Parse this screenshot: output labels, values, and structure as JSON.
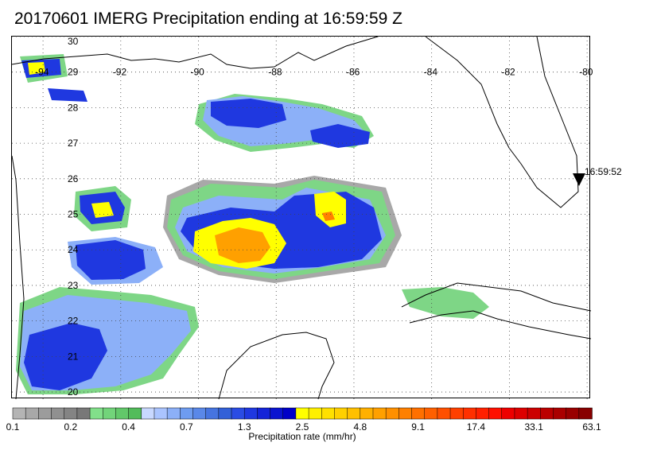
{
  "title": "20170601 IMERG Precipitation ending at 16:59:59 Z",
  "marker": {
    "time_label": "16:59:52"
  },
  "map": {
    "lon_labels": [
      "-94",
      "-92",
      "-90",
      "-88",
      "-86",
      "-84",
      "-82",
      "-80"
    ],
    "lat_labels": [
      "30",
      "29",
      "28",
      "27",
      "26",
      "25",
      "24",
      "23",
      "22",
      "21",
      "20"
    ],
    "lon_range": [
      -94.8,
      -79.9
    ],
    "lat_range": [
      19.8,
      30.0
    ],
    "grid": true
  },
  "colorbar": {
    "title": "Precipitation rate (mm/hr)",
    "tick_labels": [
      "0.1",
      "0.2",
      "0.4",
      "0.7",
      "1.3",
      "2.5",
      "4.8",
      "9.1",
      "17.4",
      "33.1",
      "63.1"
    ],
    "colors": [
      "#b4b4b4",
      "#a8a8a8",
      "#9c9c9c",
      "#909090",
      "#848484",
      "#787878",
      "#82e08a",
      "#72d47a",
      "#62c86a",
      "#52bc5a",
      "#c8d8ff",
      "#aac4ff",
      "#8cb0f8",
      "#6e9cf0",
      "#5a88e8",
      "#4674e0",
      "#3260d8",
      "#2a4ce4",
      "#1f38e0",
      "#1424d8",
      "#0a14d0",
      "#0000c8",
      "#ffff00",
      "#fff000",
      "#ffe000",
      "#ffd000",
      "#ffc000",
      "#ffb000",
      "#ffa000",
      "#ff9000",
      "#ff8000",
      "#ff7000",
      "#ff6000",
      "#ff5000",
      "#ff4000",
      "#ff3000",
      "#ff2000",
      "#ff1000",
      "#ee0000",
      "#dd0000",
      "#cc0000",
      "#bb0000",
      "#aa0000",
      "#990000",
      "#880000"
    ],
    "colors_total_units": 45
  }
}
